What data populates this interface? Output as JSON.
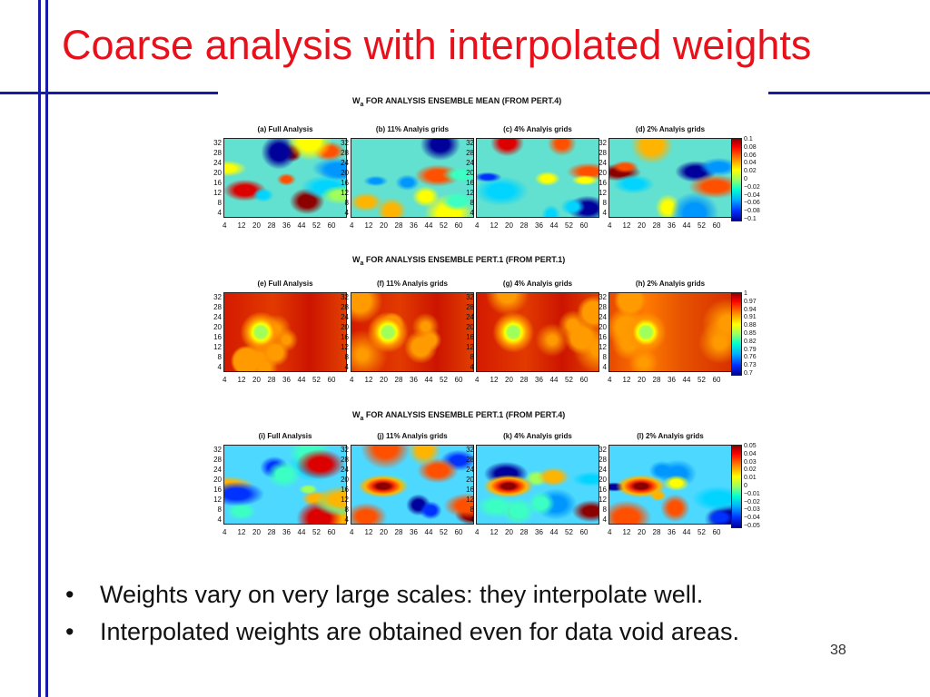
{
  "slide": {
    "title": "Coarse analysis with interpolated weights",
    "page_number": "38",
    "bullets": [
      "Weights vary on very large scales: they interpolate well.",
      "Interpolated weights are obtained even for data void areas."
    ]
  },
  "figure": {
    "rows": [
      {
        "title_w": "W",
        "title_sub": "a",
        "title_text": " FOR ANALYSIS ENSEMBLE MEAN (FROM PERT.4)",
        "panels": [
          "(a) Full Analysis",
          "(b) 11% Analyis grids",
          "(c) 4% Analyis grids",
          "(d) 2% Analyis grids"
        ],
        "colorbar": [
          "0.1",
          "0.08",
          "0.06",
          "0.04",
          "0.02",
          "0",
          "−0.02",
          "−0.04",
          "−0.06",
          "−0.08",
          "−0.1"
        ]
      },
      {
        "title_w": "W",
        "title_sub": "a",
        "title_text": " FOR ANALYSIS ENSEMBLE PERT.1 (FROM PERT.1)",
        "panels": [
          "(e) Full Analysis",
          "(f) 11% Analyis grids",
          "(g) 4% Analyis grids",
          "(h) 2% Analyis grids"
        ],
        "colorbar": [
          "1",
          "0.97",
          "0.94",
          "0.91",
          "0.88",
          "0.85",
          "0.82",
          "0.79",
          "0.76",
          "0.73",
          "0.7"
        ]
      },
      {
        "title_w": "W",
        "title_sub": "a",
        "title_text": " FOR ANALYSIS ENSEMBLE PERT.1 (FROM PERT.4)",
        "panels": [
          "(i) Full Analysis",
          "(j) 11% Analyis grids",
          "(k) 4% Analyis grids",
          "(l) 2% Analyis grids"
        ],
        "colorbar": [
          "0.05",
          "0.04",
          "0.03",
          "0.02",
          "0.01",
          "0",
          "−0.01",
          "−0.02",
          "−0.03",
          "−0.04",
          "−0.05"
        ]
      }
    ],
    "y_ticks": [
      "32",
      "28",
      "24",
      "20",
      "16",
      "12",
      "8",
      "4"
    ],
    "x_ticks": [
      "4",
      "12",
      "20",
      "28",
      "36",
      "44",
      "52",
      "60"
    ],
    "colors": {
      "title": "#e8101a",
      "rule": "#1a1aa8"
    }
  }
}
